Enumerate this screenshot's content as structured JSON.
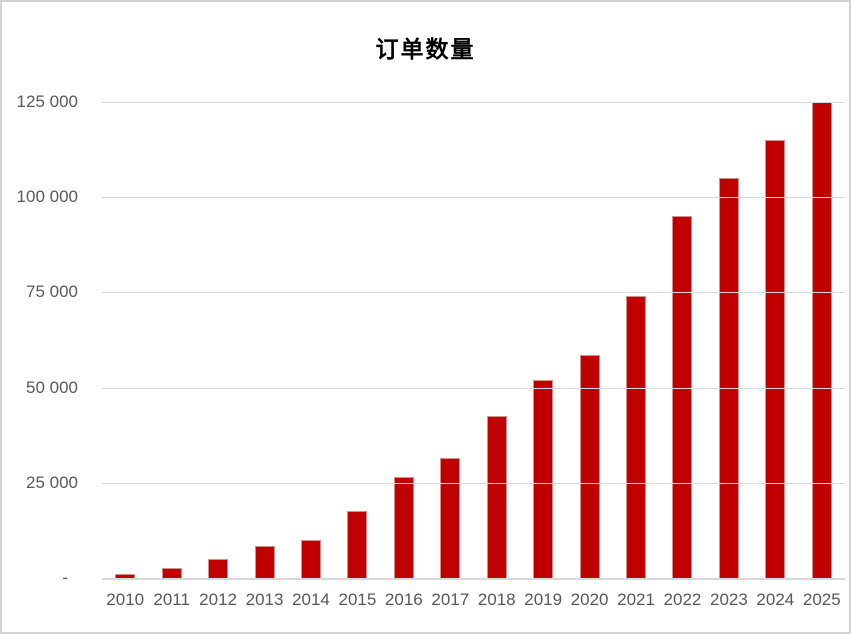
{
  "chart_data": {
    "type": "bar",
    "title": "订单数量",
    "xlabel": "",
    "ylabel": "",
    "categories": [
      "2010",
      "2011",
      "2012",
      "2013",
      "2014",
      "2015",
      "2016",
      "2017",
      "2018",
      "2019",
      "2020",
      "2021",
      "2022",
      "2023",
      "2024",
      "2025"
    ],
    "values": [
      1000,
      2500,
      5000,
      8500,
      10000,
      17500,
      26500,
      31500,
      42500,
      52000,
      58500,
      74000,
      95000,
      105000,
      115000,
      125000
    ],
    "ylim": [
      0,
      125000
    ],
    "y_ticks": [
      {
        "value": 125000,
        "label": "125 000"
      },
      {
        "value": 100000,
        "label": "100 000"
      },
      {
        "value": 75000,
        "label": "75 000"
      },
      {
        "value": 50000,
        "label": "50 000"
      },
      {
        "value": 25000,
        "label": "25 000"
      },
      {
        "value": 0,
        "label": "-"
      }
    ],
    "grid": true,
    "legend": false,
    "colors": {
      "bar": "#c00000",
      "bar_edge": "#d98e8e",
      "grid": "#d9d9d9",
      "axis_text": "#595959",
      "title_text": "#000000",
      "frame": "#d2d2d2",
      "background": "#ffffff"
    }
  }
}
